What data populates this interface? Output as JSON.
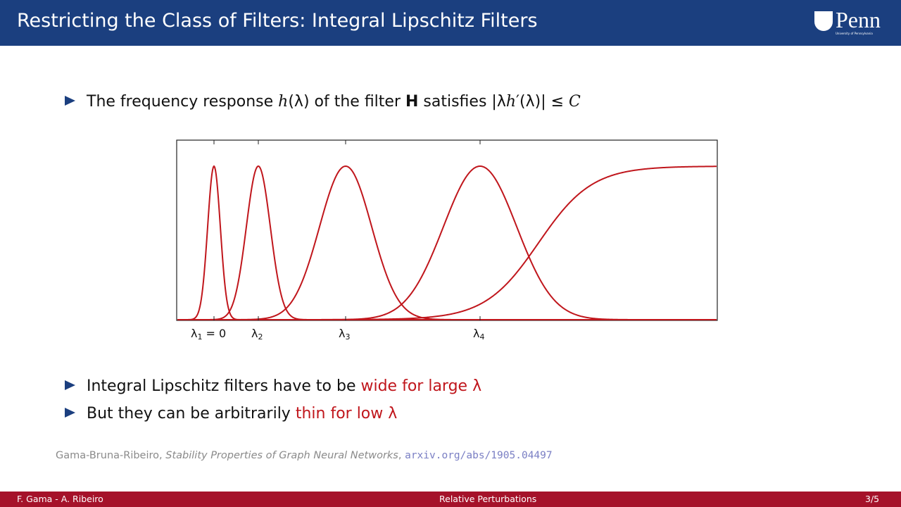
{
  "header": {
    "title": "Restricting the Class of Filters: Integral Lipschitz Filters",
    "logo": "Penn",
    "logo_sub": "University of Pennsylvania"
  },
  "bullets": [
    {
      "parts": [
        "The frequency response ",
        "h",
        "(λ) of the filter ",
        "H",
        " satisfies |λ",
        "h",
        "′(λ)| ≤ ",
        "C"
      ]
    },
    {
      "parts": [
        "Integral Lipschitz filters have to be ",
        "wide for large λ"
      ]
    },
    {
      "parts": [
        "But they can be arbitrarily ",
        "thin for low λ"
      ]
    }
  ],
  "figure": {
    "ticks": [
      {
        "symbol": "λ",
        "sub": "1",
        "rest": " = 0"
      },
      {
        "symbol": "λ",
        "sub": "2"
      },
      {
        "symbol": "λ",
        "sub": "3"
      },
      {
        "symbol": "λ",
        "sub": "4"
      }
    ]
  },
  "citation": {
    "authors": "Gama-Bruna-Ribeiro, ",
    "title": "Stability Properties of Graph Neural Networks",
    "sep": ", ",
    "link": "arxiv.org/abs/1905.04497"
  },
  "footer": {
    "left": "F. Gama - A. Ribeiro",
    "center": "Relative Perturbations",
    "right": "3/5"
  }
}
